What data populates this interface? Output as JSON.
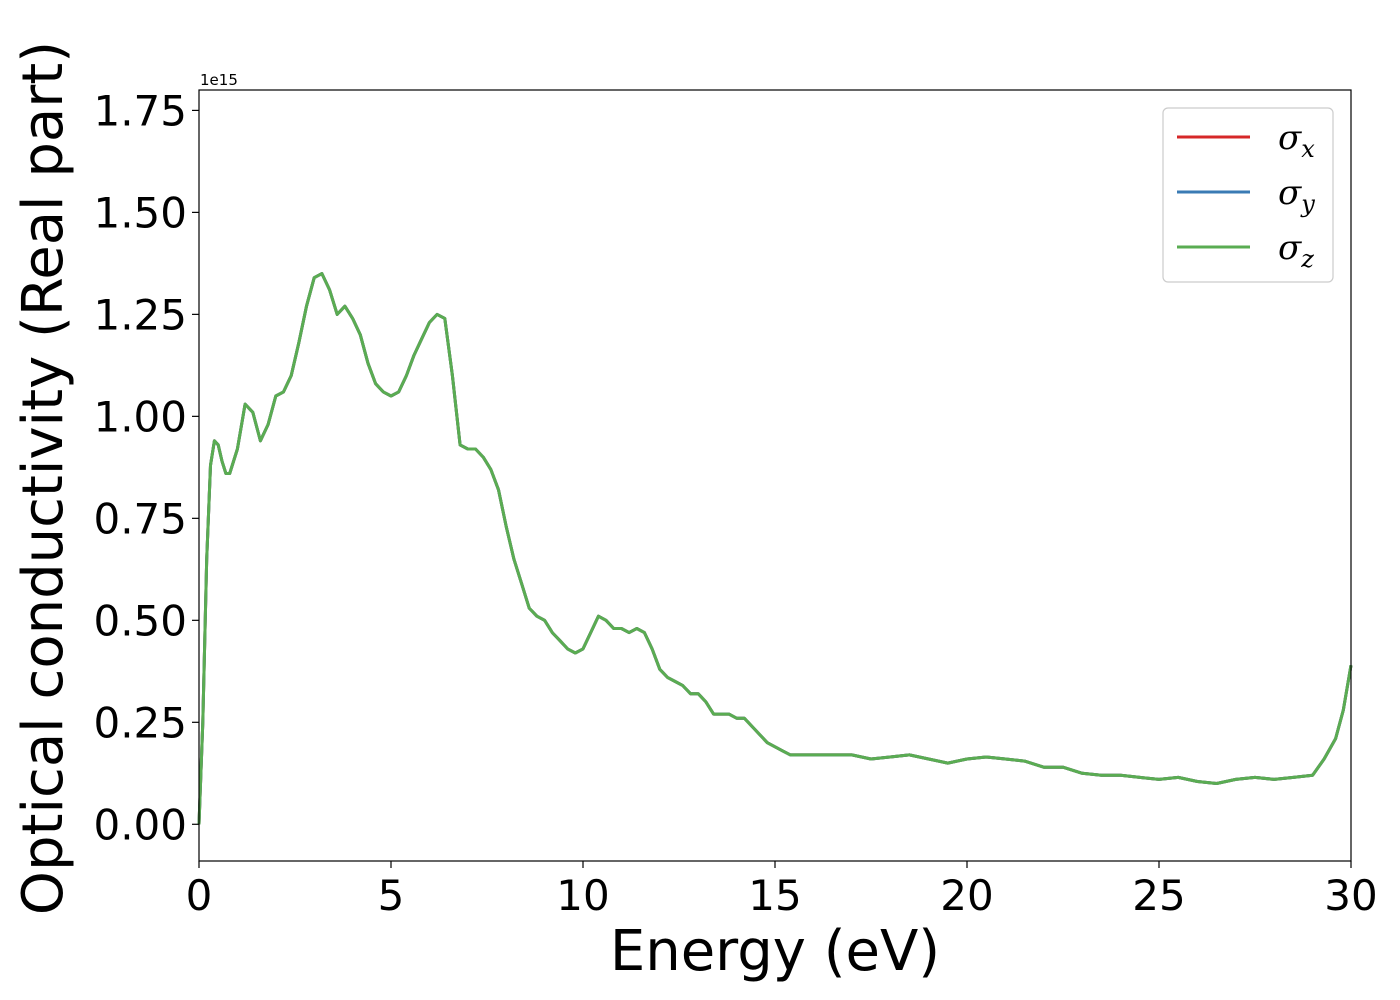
{
  "chart_data": {
    "type": "line",
    "xlabel": "Energy (eV)",
    "ylabel": "Optical conductivity (Real part)",
    "y_offset_label": "1e15",
    "xlim": [
      0,
      30
    ],
    "ylim": [
      -0.09,
      1.8
    ],
    "x_ticks": [
      "0",
      "5",
      "10",
      "15",
      "20",
      "25",
      "30"
    ],
    "y_ticks": [
      "0.00",
      "0.25",
      "0.50",
      "0.75",
      "1.00",
      "1.25",
      "1.50",
      "1.75"
    ],
    "grid": false,
    "legend_position": "top-right",
    "series": [
      {
        "name": "σx",
        "base": "σ",
        "sub": "x",
        "color": "#d62728"
      },
      {
        "name": "σy",
        "base": "σ",
        "sub": "y",
        "color": "#3a7bb4"
      },
      {
        "name": "σz",
        "base": "σ",
        "sub": "z",
        "color": "#5aac52"
      }
    ],
    "shared_curve": {
      "x": [
        0,
        0.1,
        0.2,
        0.3,
        0.4,
        0.5,
        0.6,
        0.7,
        0.8,
        1.0,
        1.2,
        1.4,
        1.6,
        1.8,
        2.0,
        2.2,
        2.4,
        2.6,
        2.8,
        3.0,
        3.2,
        3.4,
        3.6,
        3.8,
        4.0,
        4.2,
        4.4,
        4.6,
        4.8,
        5.0,
        5.2,
        5.4,
        5.6,
        5.8,
        6.0,
        6.2,
        6.4,
        6.6,
        6.8,
        7.0,
        7.2,
        7.4,
        7.6,
        7.8,
        8.0,
        8.2,
        8.4,
        8.6,
        8.8,
        9.0,
        9.2,
        9.4,
        9.6,
        9.8,
        10.0,
        10.2,
        10.4,
        10.6,
        10.8,
        11.0,
        11.2,
        11.4,
        11.6,
        11.8,
        12.0,
        12.2,
        12.4,
        12.6,
        12.8,
        13.0,
        13.2,
        13.4,
        13.6,
        13.8,
        14.0,
        14.2,
        14.4,
        14.6,
        14.8,
        15.0,
        15.2,
        15.4,
        15.6,
        15.8,
        16.0,
        16.5,
        17.0,
        17.5,
        18.0,
        18.5,
        19.0,
        19.5,
        20.0,
        20.5,
        21.0,
        21.5,
        22.0,
        22.5,
        23.0,
        23.5,
        24.0,
        24.5,
        25.0,
        25.5,
        26.0,
        26.5,
        27.0,
        27.5,
        28.0,
        28.5,
        29.0,
        29.3,
        29.6,
        29.8,
        30.0
      ],
      "y": [
        0.0,
        0.25,
        0.65,
        0.88,
        0.94,
        0.93,
        0.89,
        0.86,
        0.86,
        0.92,
        1.03,
        1.01,
        0.94,
        0.98,
        1.05,
        1.06,
        1.1,
        1.18,
        1.27,
        1.34,
        1.35,
        1.31,
        1.25,
        1.27,
        1.24,
        1.2,
        1.13,
        1.08,
        1.06,
        1.05,
        1.06,
        1.1,
        1.15,
        1.19,
        1.23,
        1.25,
        1.24,
        1.1,
        0.93,
        0.92,
        0.92,
        0.9,
        0.87,
        0.82,
        0.73,
        0.65,
        0.59,
        0.53,
        0.51,
        0.5,
        0.47,
        0.45,
        0.43,
        0.42,
        0.43,
        0.47,
        0.51,
        0.5,
        0.48,
        0.48,
        0.47,
        0.48,
        0.47,
        0.43,
        0.38,
        0.36,
        0.35,
        0.34,
        0.32,
        0.32,
        0.3,
        0.27,
        0.27,
        0.27,
        0.26,
        0.26,
        0.24,
        0.22,
        0.2,
        0.19,
        0.18,
        0.17,
        0.17,
        0.17,
        0.17,
        0.17,
        0.17,
        0.16,
        0.165,
        0.17,
        0.16,
        0.15,
        0.16,
        0.165,
        0.16,
        0.155,
        0.14,
        0.14,
        0.125,
        0.12,
        0.12,
        0.115,
        0.11,
        0.115,
        0.105,
        0.1,
        0.11,
        0.115,
        0.11,
        0.115,
        0.12,
        0.16,
        0.21,
        0.28,
        0.39
      ]
    }
  }
}
